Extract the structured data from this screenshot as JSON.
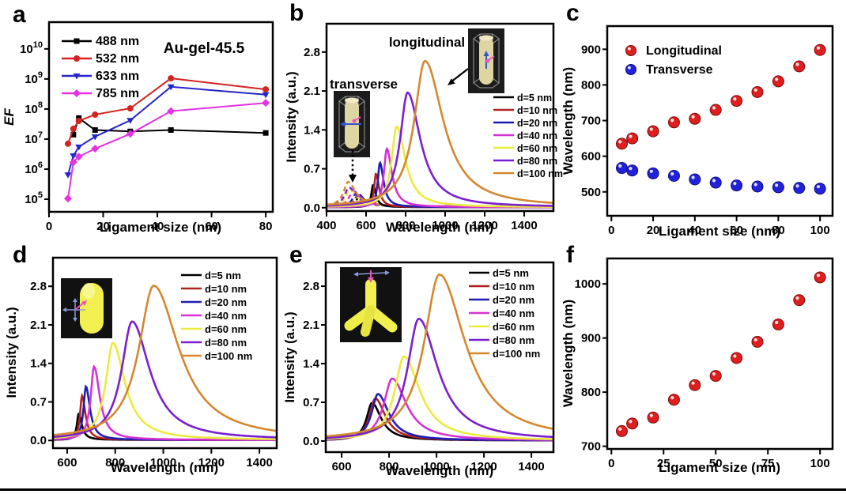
{
  "figure": {
    "background": "#ffffff",
    "panels": [
      {
        "id": "a",
        "label": "a"
      },
      {
        "id": "b",
        "label": "b"
      },
      {
        "id": "c",
        "label": "c"
      },
      {
        "id": "d",
        "label": "d"
      },
      {
        "id": "e",
        "label": "e"
      },
      {
        "id": "f",
        "label": "f"
      }
    ]
  },
  "chart_data": [
    {
      "panel": "a",
      "type": "line",
      "x_scale": "linear",
      "y_scale": "log",
      "title": "Au-gel-45.5",
      "xlabel": "Ligament size (nm)",
      "ylabel": "EF",
      "ylabel_italic": true,
      "xlim": [
        0,
        82.6
      ],
      "xticks": [
        0,
        20,
        40,
        60,
        80
      ],
      "ylim_exp": [
        4.58,
        10.89
      ],
      "yticks_exp": [
        5,
        6,
        7,
        8,
        9,
        10
      ],
      "legend_position": "top-left",
      "series": [
        {
          "name": "488 nm",
          "color": "#000000",
          "marker": "square",
          "x": [
            9,
            11,
            17,
            30,
            45,
            80
          ],
          "y": [
            14000000.0,
            50000000.0,
            20000000.0,
            18000000.0,
            20000000.0,
            16000000.0
          ]
        },
        {
          "name": "532 nm",
          "color": "#d42323",
          "marker": "circle",
          "x": [
            7,
            9,
            11,
            17,
            30,
            45,
            80
          ],
          "y": [
            7000000.0,
            22000000.0,
            40000000.0,
            65000000.0,
            105000000.0,
            1050000000.0,
            450000000.0
          ]
        },
        {
          "name": "633 nm",
          "color": "#2525c8",
          "marker": "triangle-down",
          "x": [
            7,
            9,
            11,
            17,
            30,
            45,
            80
          ],
          "y": [
            650000.0,
            2800000.0,
            5500000.0,
            12000000.0,
            42000000.0,
            550000000.0,
            300000000.0
          ]
        },
        {
          "name": "785 nm",
          "color": "#e333e3",
          "marker": "diamond",
          "x": [
            7,
            9,
            11,
            17,
            30,
            45,
            80
          ],
          "y": [
            105000.0,
            1700000.0,
            2600000.0,
            4800000.0,
            15000000.0,
            85000000.0,
            160000000.0
          ]
        }
      ]
    },
    {
      "panel": "b",
      "type": "spectra",
      "xlabel": "Wavelength (nm)",
      "ylabel": "Intensity (a.u.)",
      "xlim": [
        400,
        1548
      ],
      "xticks": [
        400,
        600,
        800,
        1000,
        1200,
        1400
      ],
      "ylim": [
        -0.06,
        3.31
      ],
      "yticks": [
        {
          "v": 0,
          "label": "0.0"
        },
        {
          "v": 0.7,
          "label": "0.7"
        },
        {
          "v": 1.4,
          "label": "1.4"
        },
        {
          "v": 2.1,
          "label": "2.1"
        },
        {
          "v": 2.8,
          "label": "2.8"
        }
      ],
      "annotations": [
        {
          "text": "longitudinal",
          "arrow": "solid"
        },
        {
          "text": "transverse",
          "arrow": "dotted"
        }
      ],
      "insets": [
        {
          "icon": "nanorod-cell-transverse-inset"
        },
        {
          "icon": "nanorod-cell-longitudinal-inset"
        }
      ],
      "series": [
        {
          "name": "d=5 nm",
          "color": "#000000",
          "peak": {
            "center": 635,
            "height": 0.4,
            "width": 20
          },
          "transverse_peak": {
            "center": 567,
            "height": 0.18,
            "width": 40
          }
        },
        {
          "name": "d=10 nm",
          "color": "#b22222",
          "peak": {
            "center": 650,
            "height": 0.6,
            "width": 22
          },
          "transverse_peak": {
            "center": 560,
            "height": 0.22,
            "width": 42
          }
        },
        {
          "name": "d=20 nm",
          "color": "#1e1eb4",
          "peak": {
            "center": 670,
            "height": 0.8,
            "width": 26
          },
          "transverse_peak": {
            "center": 552,
            "height": 0.25,
            "width": 45
          }
        },
        {
          "name": "d=40 nm",
          "color": "#d433d4",
          "peak": {
            "center": 705,
            "height": 1.05,
            "width": 36
          },
          "transverse_peak": {
            "center": 535,
            "height": 0.28,
            "width": 48
          }
        },
        {
          "name": "d=60 nm",
          "color": "#ebeb3f",
          "peak": {
            "center": 755,
            "height": 1.45,
            "width": 62
          },
          "transverse_peak": {
            "center": 518,
            "height": 0.3,
            "width": 50
          }
        },
        {
          "name": "d=80 nm",
          "color": "#7a1fd0",
          "peak": {
            "center": 810,
            "height": 2.06,
            "width": 92
          },
          "transverse_peak": {
            "center": 513,
            "height": 0.34,
            "width": 52
          }
        },
        {
          "name": "d=100 nm",
          "color": "#d4882e",
          "peak": {
            "center": 898,
            "height": 2.63,
            "width": 132
          },
          "transverse_peak": {
            "center": 509,
            "height": 0.44,
            "width": 55
          }
        }
      ]
    },
    {
      "panel": "c",
      "type": "scatter",
      "xlabel": "Ligament size (nm)",
      "ylabel": "Wavelength (nm)",
      "xlim": [
        -2,
        106
      ],
      "xticks": [
        0,
        20,
        40,
        60,
        80,
        100
      ],
      "ylim": [
        433,
        965
      ],
      "yticks": [
        {
          "v": 500,
          "label": "500"
        },
        {
          "v": 600,
          "label": "600"
        },
        {
          "v": 700,
          "label": "700"
        },
        {
          "v": 800,
          "label": "800"
        },
        {
          "v": 900,
          "label": "900"
        }
      ],
      "series": [
        {
          "name": "Longitudinal",
          "color": "#df1f1f",
          "edge": "#7a0c0c",
          "x": [
            5,
            10,
            20,
            30,
            40,
            50,
            60,
            70,
            80,
            90,
            100
          ],
          "y": [
            635,
            650,
            670,
            695,
            705,
            730,
            755,
            780,
            810,
            852,
            898
          ]
        },
        {
          "name": "Transverse",
          "color": "#2222dd",
          "edge": "#0c0c7a",
          "x": [
            5,
            10,
            20,
            30,
            40,
            50,
            60,
            70,
            80,
            90,
            100
          ],
          "y": [
            567,
            560,
            552,
            545,
            535,
            526,
            518,
            515,
            513,
            511,
            509
          ]
        }
      ]
    },
    {
      "panel": "d",
      "type": "spectra",
      "xlabel": "Wavelength (nm)",
      "ylabel": "Intensity (a.u.)",
      "xlim": [
        541,
        1472
      ],
      "xticks": [
        600,
        800,
        1000,
        1200,
        1400
      ],
      "ylim": [
        -0.14,
        3.32
      ],
      "yticks": [
        {
          "v": 0,
          "label": "0.0"
        },
        {
          "v": 0.7,
          "label": "0.7"
        },
        {
          "v": 1.4,
          "label": "1.4"
        },
        {
          "v": 2.1,
          "label": "2.1"
        },
        {
          "v": 2.8,
          "label": "2.8"
        }
      ],
      "insets": [
        {
          "icon": "nanorod-inset"
        }
      ],
      "series": [
        {
          "name": "d=5 nm",
          "color": "#000000",
          "peak": {
            "center": 648,
            "height": 0.48,
            "width": 18
          }
        },
        {
          "name": "d=10 nm",
          "color": "#b22222",
          "peak": {
            "center": 662,
            "height": 0.8,
            "width": 20
          }
        },
        {
          "name": "d=20 nm",
          "color": "#1e1eb4",
          "peak": {
            "center": 678,
            "height": 0.97,
            "width": 24
          }
        },
        {
          "name": "d=40 nm",
          "color": "#d433d4",
          "peak": {
            "center": 712,
            "height": 1.33,
            "width": 34
          }
        },
        {
          "name": "d=60 nm",
          "color": "#ebeb3f",
          "peak": {
            "center": 790,
            "height": 1.76,
            "width": 72
          }
        },
        {
          "name": "d=80 nm",
          "color": "#7a1fd0",
          "peak": {
            "center": 870,
            "height": 2.15,
            "width": 105
          }
        },
        {
          "name": "d=100 nm",
          "color": "#d4882e",
          "peak": {
            "center": 960,
            "height": 2.8,
            "width": 150
          }
        }
      ]
    },
    {
      "panel": "e",
      "type": "spectra",
      "xlabel": "Wavelength (nm)",
      "ylabel": "Intensity (a.u.)",
      "xlim": [
        533,
        1493
      ],
      "xticks": [
        600,
        800,
        1000,
        1200,
        1400
      ],
      "ylim": [
        -0.2,
        3.23
      ],
      "yticks": [
        {
          "v": 0,
          "label": "0.0"
        },
        {
          "v": 0.7,
          "label": "0.7"
        },
        {
          "v": 1.4,
          "label": "1.4"
        },
        {
          "v": 2.1,
          "label": "2.1"
        },
        {
          "v": 2.8,
          "label": "2.8"
        }
      ],
      "insets": [
        {
          "icon": "tetrapod-inset"
        }
      ],
      "series": [
        {
          "name": "d=5 nm",
          "color": "#000000",
          "peak": {
            "center": 728,
            "height": 0.68,
            "width": 55
          }
        },
        {
          "name": "d=10 nm",
          "color": "#b22222",
          "peak": {
            "center": 742,
            "height": 0.76,
            "width": 60
          }
        },
        {
          "name": "d=20 nm",
          "color": "#1e1eb4",
          "peak": {
            "center": 753,
            "height": 0.84,
            "width": 65
          }
        },
        {
          "name": "d=40 nm",
          "color": "#d433d4",
          "peak": {
            "center": 813,
            "height": 1.12,
            "width": 85
          }
        },
        {
          "name": "d=60 nm",
          "color": "#ebeb3f",
          "peak": {
            "center": 863,
            "height": 1.52,
            "width": 95
          }
        },
        {
          "name": "d=80 nm",
          "color": "#7a1fd0",
          "peak": {
            "center": 925,
            "height": 2.2,
            "width": 115
          }
        },
        {
          "name": "d=100 nm",
          "color": "#d4882e",
          "peak": {
            "center": 1012,
            "height": 3.0,
            "width": 155
          }
        }
      ]
    },
    {
      "panel": "f",
      "type": "scatter",
      "xlabel": "Ligament size (nm)",
      "ylabel": "Wavelength (nm)",
      "xlim": [
        -2,
        106
      ],
      "xticks": [
        0,
        25,
        50,
        75,
        100
      ],
      "ylim": [
        695,
        1047
      ],
      "yticks": [
        {
          "v": 700,
          "label": "700"
        },
        {
          "v": 800,
          "label": "800"
        },
        {
          "v": 900,
          "label": "900"
        },
        {
          "v": 1000,
          "label": "1000"
        }
      ],
      "series": [
        {
          "name": "Longitudinal",
          "color": "#df1f1f",
          "edge": "#7a0c0c",
          "x": [
            5,
            10,
            20,
            30,
            40,
            50,
            60,
            70,
            80,
            90,
            100
          ],
          "y": [
            728,
            742,
            753,
            786,
            813,
            830,
            863,
            893,
            925,
            970,
            1012
          ]
        }
      ]
    }
  ]
}
